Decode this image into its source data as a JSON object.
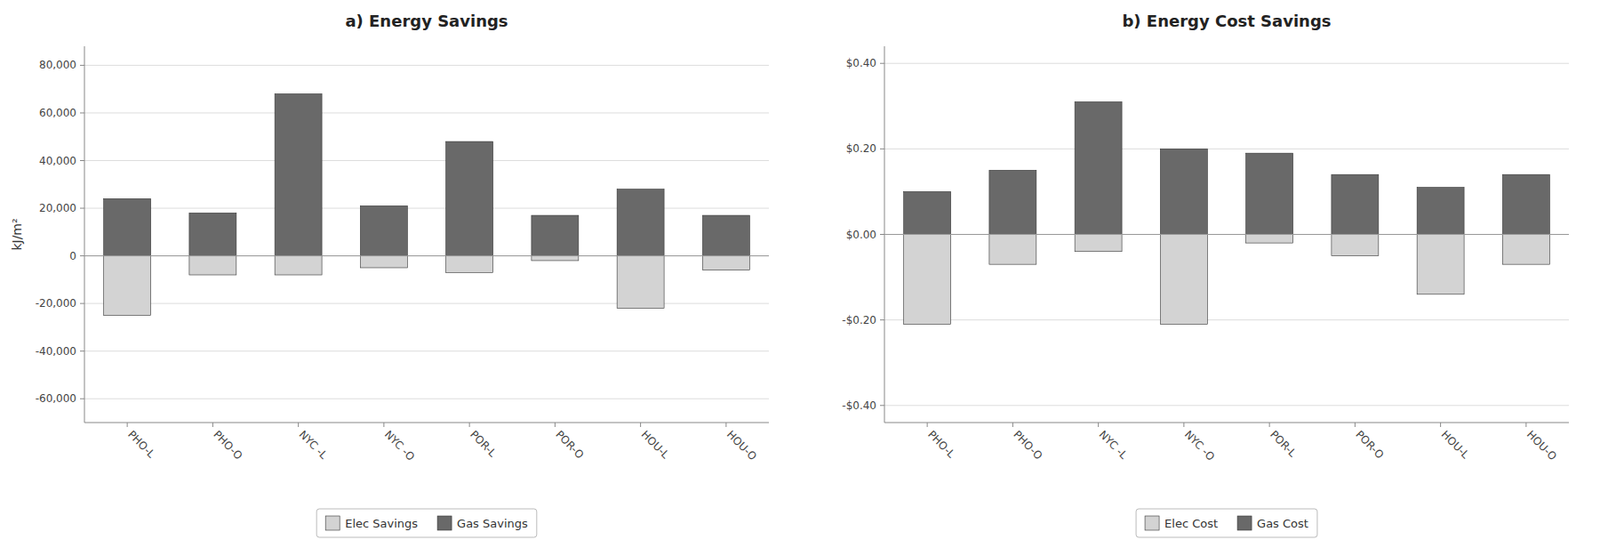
{
  "chart_data": [
    {
      "type": "bar",
      "title": "a) Energy Savings",
      "y_label": "kJ/m²",
      "categories": [
        "PHO-L",
        "PHO-O",
        "NYC -L",
        "NYC -O",
        "POR-L",
        "POR-O",
        "HOU-L",
        "HOU-O"
      ],
      "series": [
        {
          "name": "Elec Savings",
          "color": "#d3d3d3",
          "values": [
            -25000,
            -8000,
            -8000,
            -5000,
            -7000,
            -2000,
            -22000,
            -6000
          ]
        },
        {
          "name": "Gas Savings",
          "color": "#696969",
          "values": [
            24000,
            18000,
            68000,
            21000,
            48000,
            17000,
            28000,
            17000
          ]
        }
      ],
      "ylim": [
        -70000,
        88000
      ],
      "yticks": [
        {
          "value": -60000,
          "label": "-60,000"
        },
        {
          "value": -40000,
          "label": "-40,000"
        },
        {
          "value": -20000,
          "label": "-20,000"
        },
        0,
        {
          "value": 20000,
          "label": "20,000"
        },
        {
          "value": 40000,
          "label": "40,000"
        },
        {
          "value": 60000,
          "label": "60,000"
        },
        {
          "value": 80000,
          "label": "80,000"
        }
      ],
      "grid": true,
      "legend": "bottom"
    },
    {
      "type": "bar",
      "title": "b) Energy Cost Savings",
      "categories": [
        "PHO-L",
        "PHO-O",
        "NYC -L",
        "NYC -O",
        "POR-L",
        "POR-O",
        "HOU-L",
        "HOU-O"
      ],
      "series": [
        {
          "name": "Elec Cost",
          "color": "#d3d3d3",
          "values": [
            -0.21,
            -0.07,
            -0.04,
            -0.21,
            -0.02,
            -0.05,
            -0.14,
            -0.07
          ]
        },
        {
          "name": "Gas Cost",
          "color": "#696969",
          "values": [
            0.1,
            0.15,
            0.31,
            0.2,
            0.19,
            0.14,
            0.11,
            0.14
          ]
        }
      ],
      "ylim": [
        -0.44,
        0.44
      ],
      "yticks": [
        {
          "value": -0.4,
          "label": "-$0.40"
        },
        {
          "value": -0.2,
          "label": "-$0.20"
        },
        {
          "value": 0,
          "label": "$0.00"
        },
        {
          "value": 0.2,
          "label": "$0.20"
        },
        {
          "value": 0.4,
          "label": "$0.40"
        }
      ],
      "grid": true,
      "legend": "bottom"
    }
  ]
}
